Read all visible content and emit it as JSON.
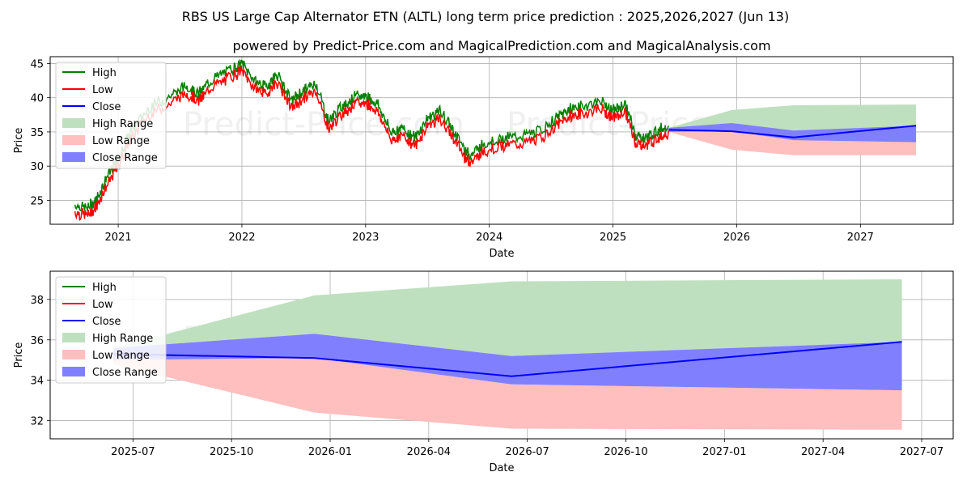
{
  "title": "RBS US Large Cap Alternator ETN (ALTL) long term price prediction : 2025,2026,2027 (Jun 13)",
  "subtitle": "powered by Predict-Price.com and MagicalPrediction.com and MagicalAnalysis.com",
  "watermark": "Predict-Price.com",
  "colors": {
    "high": "#008000",
    "low": "#ff0000",
    "close": "#0000ff",
    "high_range": "#bfe0bf",
    "low_range": "#ffbfbf",
    "close_range": "#8080ff",
    "grid": "#b0b0b0"
  },
  "chart_data": [
    {
      "type": "line",
      "name": "long-term",
      "xlabel": "Date",
      "ylabel": "Price",
      "xlim": [
        2020.45,
        2027.75
      ],
      "ylim": [
        21.5,
        46.0
      ],
      "x_ticks": [
        2021,
        2022,
        2023,
        2024,
        2025,
        2026,
        2027
      ],
      "x_tick_labels": [
        "2021",
        "2022",
        "2023",
        "2024",
        "2025",
        "2026",
        "2027"
      ],
      "y_ticks": [
        25,
        30,
        35,
        40,
        45
      ],
      "y_tick_labels": [
        "25",
        "30",
        "35",
        "40",
        "45"
      ],
      "legend": [
        "High",
        "Low",
        "Close",
        "High Range",
        "Low Range",
        "Close Range"
      ],
      "legend_position": "top-left",
      "history_anchors": {
        "x": [
          2020.65,
          2020.75,
          2020.82,
          2020.9,
          2021.0,
          2021.1,
          2021.25,
          2021.4,
          2021.55,
          2021.65,
          2021.75,
          2021.9,
          2022.0,
          2022.1,
          2022.2,
          2022.28,
          2022.4,
          2022.5,
          2022.6,
          2022.7,
          2022.8,
          2022.9,
          2023.0,
          2023.1,
          2023.2,
          2023.3,
          2023.4,
          2023.5,
          2023.6,
          2023.7,
          2023.8,
          2023.85,
          2023.95,
          2024.1,
          2024.25,
          2024.4,
          2024.55,
          2024.65,
          2024.75,
          2024.9,
          2025.0,
          2025.1,
          2025.18,
          2025.25,
          2025.35,
          2025.45
        ],
        "y": [
          23.8,
          23.3,
          24.5,
          27.5,
          30.5,
          34.5,
          38.0,
          39.5,
          41.2,
          40.0,
          42.0,
          43.5,
          44.5,
          42.0,
          41.0,
          43.0,
          39.0,
          40.5,
          41.5,
          36.0,
          38.0,
          39.5,
          39.8,
          38.5,
          34.5,
          35.0,
          33.5,
          36.5,
          37.5,
          35.0,
          32.0,
          31.0,
          32.8,
          33.5,
          33.8,
          34.5,
          36.5,
          37.8,
          38.2,
          39.0,
          37.5,
          38.5,
          34.0,
          33.5,
          34.5,
          35.5
        ]
      },
      "forecast": {
        "x": [
          2025.45,
          2025.96,
          2026.46,
          2027.45
        ],
        "close": [
          35.3,
          35.1,
          34.2,
          35.9
        ],
        "high_range": [
          [
            35.3,
            35.6
          ],
          [
            35.1,
            38.2
          ],
          [
            34.2,
            38.9
          ],
          [
            35.9,
            39.0
          ]
        ],
        "low_range": [
          [
            35.0,
            35.3
          ],
          [
            32.4,
            35.1
          ],
          [
            31.6,
            34.2
          ],
          [
            31.6,
            35.9
          ]
        ],
        "close_range": [
          [
            35.0,
            35.6
          ],
          [
            35.1,
            36.3
          ],
          [
            33.8,
            35.2
          ],
          [
            33.5,
            35.9
          ]
        ]
      }
    },
    {
      "type": "area",
      "name": "forecast-zoom",
      "xlabel": "Date",
      "ylabel": "Price",
      "xlim": [
        2025.29,
        2027.58
      ],
      "ylim": [
        31.1,
        39.4
      ],
      "x_ticks": [
        2025.5,
        2025.75,
        2026.0,
        2026.25,
        2026.5,
        2026.75,
        2027.0,
        2027.25,
        2027.5
      ],
      "x_tick_labels": [
        "2025-07",
        "2025-10",
        "2026-01",
        "2026-04",
        "2026-07",
        "2026-10",
        "2027-01",
        "2027-04",
        "2027-07"
      ],
      "y_ticks": [
        32,
        34,
        36,
        38
      ],
      "y_tick_labels": [
        "32",
        "34",
        "36",
        "38"
      ],
      "legend": [
        "High",
        "Low",
        "Close",
        "High Range",
        "Low Range",
        "Close Range"
      ],
      "legend_position": "top-left",
      "x": [
        2025.45,
        2025.96,
        2026.46,
        2027.45
      ],
      "close": [
        35.3,
        35.1,
        34.2,
        35.9
      ],
      "high_range": [
        [
          35.6,
          35.6
        ],
        [
          36.3,
          38.2
        ],
        [
          35.2,
          38.9
        ],
        [
          35.9,
          39.0
        ]
      ],
      "low_range": [
        [
          34.8,
          35.0
        ],
        [
          32.4,
          35.1
        ],
        [
          31.6,
          33.8
        ],
        [
          31.55,
          33.5
        ]
      ],
      "close_range": [
        [
          35.0,
          35.6
        ],
        [
          35.1,
          36.3
        ],
        [
          33.8,
          35.2
        ],
        [
          33.5,
          35.9
        ]
      ]
    }
  ]
}
